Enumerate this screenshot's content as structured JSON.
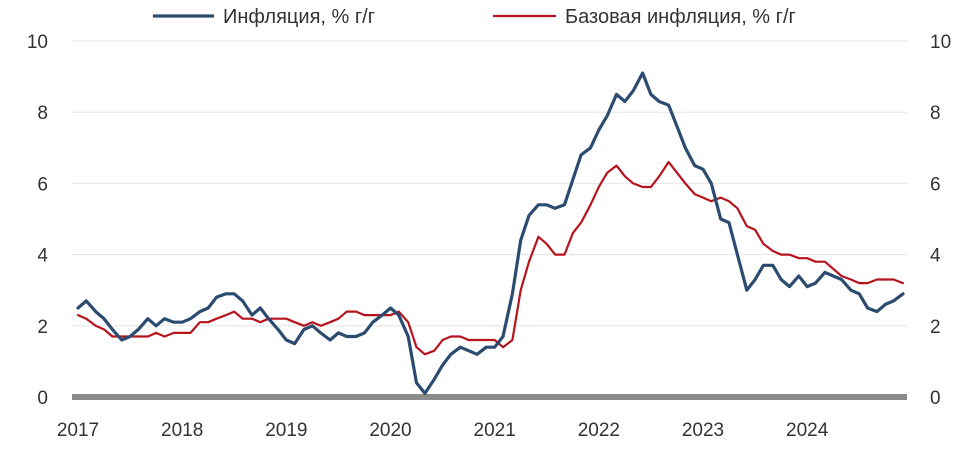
{
  "chart_data": {
    "type": "line",
    "legend_position": "top",
    "grid": "horizontal",
    "ylim": [
      0,
      10
    ],
    "y_ticks": [
      0,
      2,
      4,
      6,
      8,
      10
    ],
    "y_tick_labels": [
      "0",
      "2",
      "4",
      "6",
      "8",
      "10"
    ],
    "y_axis_sides": "left and right",
    "x_range": [
      2017.0,
      2024.92
    ],
    "x_ticks": [
      2017,
      2018,
      2019,
      2020,
      2021,
      2022,
      2023,
      2024
    ],
    "x_tick_labels": [
      "2017",
      "2018",
      "2019",
      "2020",
      "2021",
      "2022",
      "2023",
      "2024"
    ],
    "series": [
      {
        "name": "Инфляция, % г/г",
        "color": "#2b4c70",
        "points": [
          [
            2017.0,
            2.5
          ],
          [
            2017.08,
            2.7
          ],
          [
            2017.17,
            2.4
          ],
          [
            2017.25,
            2.2
          ],
          [
            2017.33,
            1.9
          ],
          [
            2017.42,
            1.6
          ],
          [
            2017.5,
            1.7
          ],
          [
            2017.58,
            1.9
          ],
          [
            2017.67,
            2.2
          ],
          [
            2017.75,
            2.0
          ],
          [
            2017.83,
            2.2
          ],
          [
            2017.92,
            2.1
          ],
          [
            2018.0,
            2.1
          ],
          [
            2018.08,
            2.2
          ],
          [
            2018.17,
            2.4
          ],
          [
            2018.25,
            2.5
          ],
          [
            2018.33,
            2.8
          ],
          [
            2018.42,
            2.9
          ],
          [
            2018.5,
            2.9
          ],
          [
            2018.58,
            2.7
          ],
          [
            2018.67,
            2.3
          ],
          [
            2018.75,
            2.5
          ],
          [
            2018.83,
            2.2
          ],
          [
            2018.92,
            1.9
          ],
          [
            2019.0,
            1.6
          ],
          [
            2019.08,
            1.5
          ],
          [
            2019.17,
            1.9
          ],
          [
            2019.25,
            2.0
          ],
          [
            2019.33,
            1.8
          ],
          [
            2019.42,
            1.6
          ],
          [
            2019.5,
            1.8
          ],
          [
            2019.58,
            1.7
          ],
          [
            2019.67,
            1.7
          ],
          [
            2019.75,
            1.8
          ],
          [
            2019.83,
            2.1
          ],
          [
            2019.92,
            2.3
          ],
          [
            2020.0,
            2.5
          ],
          [
            2020.08,
            2.3
          ],
          [
            2020.17,
            1.7
          ],
          [
            2020.25,
            0.4
          ],
          [
            2020.33,
            0.1
          ],
          [
            2020.42,
            0.5
          ],
          [
            2020.5,
            0.9
          ],
          [
            2020.58,
            1.2
          ],
          [
            2020.67,
            1.4
          ],
          [
            2020.75,
            1.3
          ],
          [
            2020.83,
            1.2
          ],
          [
            2020.92,
            1.4
          ],
          [
            2021.0,
            1.4
          ],
          [
            2021.08,
            1.7
          ],
          [
            2021.17,
            2.9
          ],
          [
            2021.25,
            4.4
          ],
          [
            2021.33,
            5.1
          ],
          [
            2021.42,
            5.4
          ],
          [
            2021.5,
            5.4
          ],
          [
            2021.58,
            5.3
          ],
          [
            2021.67,
            5.4
          ],
          [
            2021.75,
            6.1
          ],
          [
            2021.83,
            6.8
          ],
          [
            2021.92,
            7.0
          ],
          [
            2022.0,
            7.5
          ],
          [
            2022.08,
            7.9
          ],
          [
            2022.17,
            8.5
          ],
          [
            2022.25,
            8.3
          ],
          [
            2022.33,
            8.6
          ],
          [
            2022.42,
            9.1
          ],
          [
            2022.5,
            8.5
          ],
          [
            2022.58,
            8.3
          ],
          [
            2022.67,
            8.2
          ],
          [
            2022.75,
            7.6
          ],
          [
            2022.83,
            7.0
          ],
          [
            2022.92,
            6.5
          ],
          [
            2023.0,
            6.4
          ],
          [
            2023.08,
            6.0
          ],
          [
            2023.17,
            5.0
          ],
          [
            2023.25,
            4.9
          ],
          [
            2023.33,
            4.0
          ],
          [
            2023.42,
            3.0
          ],
          [
            2023.5,
            3.3
          ],
          [
            2023.58,
            3.7
          ],
          [
            2023.67,
            3.7
          ],
          [
            2023.75,
            3.3
          ],
          [
            2023.83,
            3.1
          ],
          [
            2023.92,
            3.4
          ],
          [
            2024.0,
            3.1
          ],
          [
            2024.08,
            3.2
          ],
          [
            2024.17,
            3.5
          ],
          [
            2024.25,
            3.4
          ],
          [
            2024.33,
            3.3
          ],
          [
            2024.42,
            3.0
          ],
          [
            2024.5,
            2.9
          ],
          [
            2024.58,
            2.5
          ],
          [
            2024.67,
            2.4
          ],
          [
            2024.75,
            2.6
          ],
          [
            2024.83,
            2.7
          ],
          [
            2024.92,
            2.9
          ]
        ]
      },
      {
        "name": "Базовая инфляция, % г/г",
        "color": "#b5141c",
        "points": [
          [
            2017.0,
            2.3
          ],
          [
            2017.08,
            2.2
          ],
          [
            2017.17,
            2.0
          ],
          [
            2017.25,
            1.9
          ],
          [
            2017.33,
            1.7
          ],
          [
            2017.42,
            1.7
          ],
          [
            2017.5,
            1.7
          ],
          [
            2017.58,
            1.7
          ],
          [
            2017.67,
            1.7
          ],
          [
            2017.75,
            1.8
          ],
          [
            2017.83,
            1.7
          ],
          [
            2017.92,
            1.8
          ],
          [
            2018.0,
            1.8
          ],
          [
            2018.08,
            1.8
          ],
          [
            2018.17,
            2.1
          ],
          [
            2018.25,
            2.1
          ],
          [
            2018.33,
            2.2
          ],
          [
            2018.42,
            2.3
          ],
          [
            2018.5,
            2.4
          ],
          [
            2018.58,
            2.2
          ],
          [
            2018.67,
            2.2
          ],
          [
            2018.75,
            2.1
          ],
          [
            2018.83,
            2.2
          ],
          [
            2018.92,
            2.2
          ],
          [
            2019.0,
            2.2
          ],
          [
            2019.08,
            2.1
          ],
          [
            2019.17,
            2.0
          ],
          [
            2019.25,
            2.1
          ],
          [
            2019.33,
            2.0
          ],
          [
            2019.42,
            2.1
          ],
          [
            2019.5,
            2.2
          ],
          [
            2019.58,
            2.4
          ],
          [
            2019.67,
            2.4
          ],
          [
            2019.75,
            2.3
          ],
          [
            2019.83,
            2.3
          ],
          [
            2019.92,
            2.3
          ],
          [
            2020.0,
            2.3
          ],
          [
            2020.08,
            2.4
          ],
          [
            2020.17,
            2.1
          ],
          [
            2020.25,
            1.4
          ],
          [
            2020.33,
            1.2
          ],
          [
            2020.42,
            1.3
          ],
          [
            2020.5,
            1.6
          ],
          [
            2020.58,
            1.7
          ],
          [
            2020.67,
            1.7
          ],
          [
            2020.75,
            1.6
          ],
          [
            2020.83,
            1.6
          ],
          [
            2020.92,
            1.6
          ],
          [
            2021.0,
            1.6
          ],
          [
            2021.08,
            1.4
          ],
          [
            2021.17,
            1.6
          ],
          [
            2021.25,
            3.0
          ],
          [
            2021.33,
            3.8
          ],
          [
            2021.42,
            4.5
          ],
          [
            2021.5,
            4.3
          ],
          [
            2021.58,
            4.0
          ],
          [
            2021.67,
            4.0
          ],
          [
            2021.75,
            4.6
          ],
          [
            2021.83,
            4.9
          ],
          [
            2021.92,
            5.4
          ],
          [
            2022.0,
            5.9
          ],
          [
            2022.08,
            6.3
          ],
          [
            2022.17,
            6.5
          ],
          [
            2022.25,
            6.2
          ],
          [
            2022.33,
            6.0
          ],
          [
            2022.42,
            5.9
          ],
          [
            2022.5,
            5.9
          ],
          [
            2022.58,
            6.2
          ],
          [
            2022.67,
            6.6
          ],
          [
            2022.75,
            6.3
          ],
          [
            2022.83,
            6.0
          ],
          [
            2022.92,
            5.7
          ],
          [
            2023.0,
            5.6
          ],
          [
            2023.08,
            5.5
          ],
          [
            2023.17,
            5.6
          ],
          [
            2023.25,
            5.5
          ],
          [
            2023.33,
            5.3
          ],
          [
            2023.42,
            4.8
          ],
          [
            2023.5,
            4.7
          ],
          [
            2023.58,
            4.3
          ],
          [
            2023.67,
            4.1
          ],
          [
            2023.75,
            4.0
          ],
          [
            2023.83,
            4.0
          ],
          [
            2023.92,
            3.9
          ],
          [
            2024.0,
            3.9
          ],
          [
            2024.08,
            3.8
          ],
          [
            2024.17,
            3.8
          ],
          [
            2024.25,
            3.6
          ],
          [
            2024.33,
            3.4
          ],
          [
            2024.42,
            3.3
          ],
          [
            2024.5,
            3.2
          ],
          [
            2024.58,
            3.2
          ],
          [
            2024.67,
            3.3
          ],
          [
            2024.75,
            3.3
          ],
          [
            2024.83,
            3.3
          ],
          [
            2024.92,
            3.2
          ]
        ]
      }
    ]
  },
  "colors": {
    "gridline": "#e6e6e6",
    "zero_line": "#8c8c8c",
    "tick_text": "#333333"
  }
}
